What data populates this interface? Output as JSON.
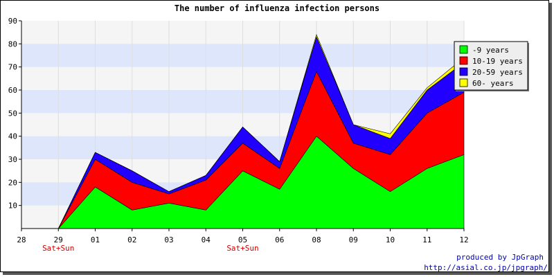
{
  "chart_data": {
    "type": "area",
    "stacked": true,
    "title": "The number of influenza infection persons",
    "xlabel": "",
    "ylabel": "",
    "ylim": [
      0,
      90
    ],
    "yticks": [
      10,
      20,
      30,
      40,
      50,
      60,
      70,
      80,
      90
    ],
    "x_tick_labels": [
      "28",
      "29",
      "01",
      "02",
      "03",
      "04",
      "05",
      "06",
      "08",
      "09",
      "10",
      "11",
      "12"
    ],
    "weekend_labels": [
      {
        "under": "29",
        "text": "Sat+Sun"
      },
      {
        "under": "05",
        "text": "Sat+Sun"
      }
    ],
    "categories": [
      "29",
      "01",
      "02",
      "03",
      "04",
      "05",
      "06",
      "08",
      "09",
      "10",
      "11",
      "12"
    ],
    "series": [
      {
        "name": "-9 years",
        "color": "#00ff00",
        "values": [
          0,
          18,
          8,
          11,
          8,
          25,
          17,
          40,
          26,
          16,
          26,
          32
        ]
      },
      {
        "name": "10-19 years",
        "color": "#ff0000",
        "values": [
          0,
          12,
          12,
          4,
          13,
          12,
          9,
          28,
          11,
          16,
          24,
          27
        ]
      },
      {
        "name": "20-59 years",
        "color": "#2200ff",
        "values": [
          0,
          3,
          5,
          1,
          2,
          7,
          3,
          15,
          8,
          7,
          10,
          13
        ]
      },
      {
        "name": "60- years",
        "color": "#ffff00",
        "values": [
          0,
          0,
          0,
          0,
          0,
          0,
          0,
          1,
          0,
          2,
          1,
          2
        ]
      }
    ],
    "grid": true,
    "legend_position": "top-right"
  },
  "credits": {
    "line1": "produced by JpGraph",
    "line2": "http://asial.co.jp/jpgraph/"
  }
}
